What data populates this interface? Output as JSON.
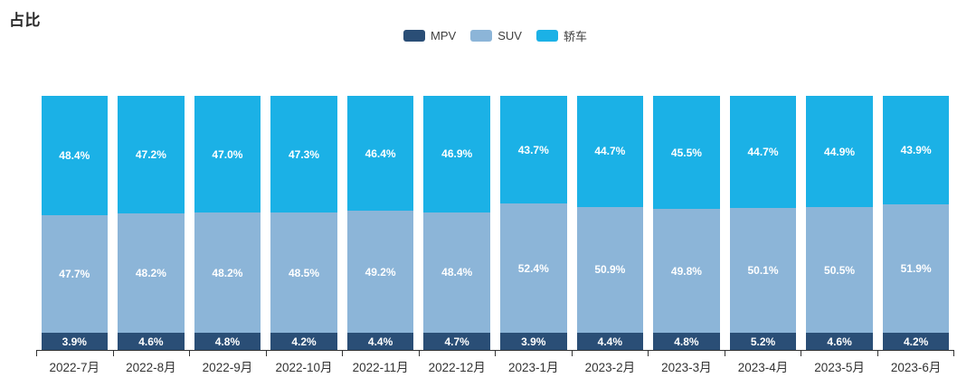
{
  "title": "占比",
  "colors": {
    "mpv": "#2a4e76",
    "suv": "#8cb5d8",
    "sedan": "#1bb1e6",
    "axis": "#333333",
    "value_label": "#ffffff"
  },
  "chart_data": {
    "type": "bar",
    "subtype": "stacked-percentage-column",
    "title": "占比",
    "legend_position": "top-center",
    "grid": false,
    "ylim": [
      0,
      100
    ],
    "value_label_format": "{value}%",
    "categories": [
      "2022-7月",
      "2022-8月",
      "2022-9月",
      "2022-10月",
      "2022-11月",
      "2022-12月",
      "2023-1月",
      "2023-2月",
      "2023-3月",
      "2023-4月",
      "2023-5月",
      "2023-6月"
    ],
    "series": [
      {
        "name": "MPV",
        "color": "#2a4e76",
        "values": [
          3.9,
          4.6,
          4.8,
          4.2,
          4.4,
          4.7,
          3.9,
          4.4,
          4.8,
          5.2,
          4.6,
          4.2
        ]
      },
      {
        "name": "SUV",
        "color": "#8cb5d8",
        "values": [
          47.7,
          48.2,
          48.2,
          48.5,
          49.2,
          48.4,
          52.4,
          50.9,
          49.8,
          50.1,
          50.5,
          51.9
        ]
      },
      {
        "name": "轿车",
        "color": "#1bb1e6",
        "values": [
          48.4,
          47.2,
          47.0,
          47.3,
          46.4,
          46.9,
          43.7,
          44.7,
          45.5,
          44.7,
          44.9,
          43.9
        ]
      }
    ]
  }
}
